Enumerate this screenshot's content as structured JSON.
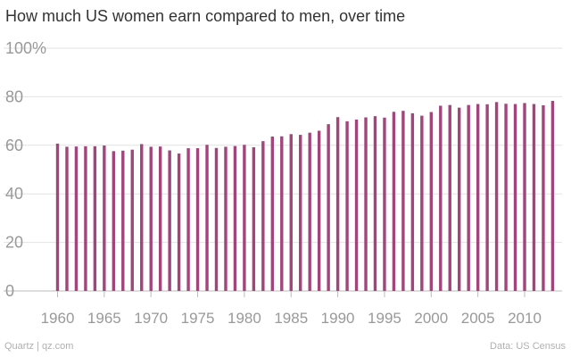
{
  "chart_data": {
    "type": "bar",
    "title": "How much US women earn compared to men, over time",
    "xlabel": "",
    "ylabel": "",
    "ylim": [
      0,
      100
    ],
    "grid": true,
    "y_tick_labels": [
      "0",
      "20",
      "40",
      "60",
      "80",
      "100%"
    ],
    "y_tick_values": [
      0,
      20,
      40,
      60,
      80,
      100
    ],
    "x_tick_labels": [
      "1960",
      "1965",
      "1970",
      "1975",
      "1980",
      "1985",
      "1990",
      "1995",
      "2000",
      "2005",
      "2010"
    ],
    "x_tick_values": [
      1960,
      1965,
      1970,
      1975,
      1980,
      1985,
      1990,
      1995,
      2000,
      2005,
      2010
    ],
    "bar_color": "#a2457d",
    "categories": [
      1960,
      1961,
      1962,
      1963,
      1964,
      1965,
      1966,
      1967,
      1968,
      1969,
      1970,
      1971,
      1972,
      1973,
      1974,
      1975,
      1976,
      1977,
      1978,
      1979,
      1980,
      1981,
      1982,
      1983,
      1984,
      1985,
      1986,
      1987,
      1988,
      1989,
      1990,
      1991,
      1992,
      1993,
      1994,
      1995,
      1996,
      1997,
      1998,
      1999,
      2000,
      2001,
      2002,
      2003,
      2004,
      2005,
      2006,
      2007,
      2008,
      2009,
      2010,
      2011,
      2012,
      2013
    ],
    "values": [
      60.7,
      59.4,
      59.5,
      59.6,
      59.6,
      59.9,
      57.6,
      57.8,
      58.2,
      60.5,
      59.4,
      59.5,
      57.9,
      56.6,
      58.8,
      58.8,
      60.2,
      58.9,
      59.4,
      59.7,
      60.2,
      59.2,
      61.7,
      63.6,
      63.7,
      64.6,
      64.3,
      65.2,
      66.0,
      68.7,
      71.6,
      69.9,
      70.6,
      71.5,
      72.0,
      71.4,
      73.8,
      74.2,
      73.2,
      72.2,
      73.7,
      76.3,
      76.6,
      75.5,
      76.6,
      77.0,
      76.9,
      77.8,
      77.1,
      77.0,
      77.4,
      77.0,
      76.5,
      78.3
    ]
  },
  "footer": {
    "source_left": "Quartz | qz.com",
    "source_right": "Data: US Census"
  }
}
